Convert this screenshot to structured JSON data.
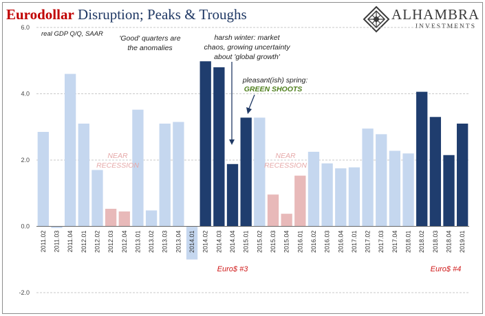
{
  "title": {
    "part1": "Eurodollar",
    "part2": " Disruption; Peaks & Troughs"
  },
  "logo": {
    "name": "ALHAMBRA",
    "sub": "INVESTMENTS"
  },
  "colors": {
    "light": "#c5d7ef",
    "dark": "#1f3d6e",
    "pink": "#e8b9b9",
    "grid": "#c8c8c8",
    "zero": "#666666"
  },
  "chart_data": {
    "type": "bar",
    "title": "Eurodollar Disruption; Peaks & Troughs",
    "ylabel": "real GDP Q/Q, SAAR",
    "ylim": [
      -2,
      6
    ],
    "yticks": [
      6,
      4,
      2,
      0,
      -2
    ],
    "ytick_labels": [
      "6.0",
      "4.0",
      "2.0",
      "0.0",
      "-2.0"
    ],
    "grid": true,
    "categories": [
      "2011.02",
      "2011.03",
      "2011.04",
      "2012.01",
      "2012.02",
      "2012.03",
      "2012.04",
      "2013.01",
      "2013.02",
      "2013.03",
      "2013.04",
      "2014.01",
      "2014.02",
      "2014.03",
      "2014.04",
      "2015.01",
      "2015.02",
      "2015.03",
      "2015.04",
      "2016.01",
      "2016.02",
      "2016.03",
      "2016.04",
      "2017.01",
      "2017.02",
      "2017.03",
      "2017.04",
      "2018.01",
      "2018.02",
      "2018.03",
      "2018.04",
      "2019.01"
    ],
    "values": [
      2.85,
      -0.05,
      4.6,
      3.1,
      1.7,
      0.53,
      0.45,
      3.52,
      0.48,
      3.1,
      3.15,
      -1.0,
      4.98,
      4.8,
      1.88,
      3.28,
      3.28,
      0.96,
      0.38,
      1.53,
      2.25,
      1.9,
      1.75,
      1.78,
      2.95,
      2.78,
      2.28,
      2.2,
      4.06,
      3.3,
      2.15,
      3.1
    ],
    "highlight": [
      "light",
      "light",
      "light",
      "light",
      "light",
      "pink",
      "pink",
      "light",
      "light",
      "light",
      "light",
      "light",
      "dark",
      "dark",
      "dark",
      "dark",
      "light",
      "pink",
      "pink",
      "pink",
      "light",
      "light",
      "light",
      "light",
      "light",
      "light",
      "light",
      "light",
      "dark",
      "dark",
      "dark",
      "dark"
    ]
  },
  "annotations": {
    "anomalies": [
      "'Good' quarters are",
      "the anomalies"
    ],
    "winter": [
      "harsh winter: market",
      "chaos, growing uncertainty",
      "about 'global growth'"
    ],
    "spring": [
      "pleasant(ish) spring:"
    ],
    "green_shoots": "GREEN SHOOTS",
    "near_recession_1": [
      "NEAR",
      "RECESSION"
    ],
    "near_recession_2": [
      "NEAR",
      "RECESSION"
    ],
    "euro3": "Euro$ #3",
    "euro4": "Euro$ #4"
  }
}
